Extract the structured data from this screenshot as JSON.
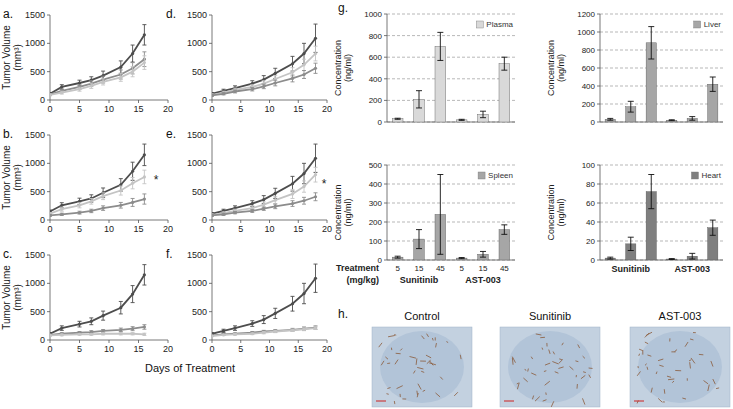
{
  "chart_data": [
    {
      "type": "line",
      "title": "a.",
      "ylabel": [
        "Tumor Volume",
        "(mm³)"
      ],
      "x": [
        0,
        2,
        5,
        7,
        9,
        12,
        14,
        16
      ],
      "xlim": [
        0,
        20
      ],
      "xticks": [
        0,
        5,
        10,
        15,
        20
      ],
      "ylim": [
        0,
        1500
      ],
      "yticks": [
        0,
        500,
        1000,
        1500
      ],
      "series": [
        {
          "color": "#4d4d4d",
          "values": [
            110,
            230,
            300,
            350,
            430,
            580,
            820,
            1150
          ],
          "errors": [
            20,
            40,
            50,
            60,
            80,
            110,
            150,
            180
          ]
        },
        {
          "color": "#8c8c8c",
          "values": [
            100,
            160,
            230,
            290,
            360,
            450,
            560,
            720
          ],
          "errors": [
            15,
            30,
            40,
            50,
            60,
            80,
            100,
            130
          ]
        },
        {
          "color": "#c4c4c4",
          "values": [
            90,
            130,
            190,
            250,
            320,
            400,
            500,
            660
          ],
          "errors": [
            15,
            25,
            35,
            45,
            55,
            70,
            90,
            120
          ]
        }
      ]
    },
    {
      "type": "line",
      "title": "b.",
      "ylabel": [
        "Tumor Volume",
        "(mm³)"
      ],
      "x": [
        0,
        2,
        5,
        7,
        9,
        12,
        14,
        16
      ],
      "xlim": [
        0,
        20
      ],
      "xticks": [
        0,
        5,
        10,
        15,
        20
      ],
      "ylim": [
        0,
        1500
      ],
      "yticks": [
        0,
        500,
        1000,
        1500
      ],
      "series": [
        {
          "color": "#4d4d4d",
          "values": [
            150,
            260,
            330,
            380,
            480,
            620,
            860,
            1150
          ],
          "errors": [
            25,
            45,
            55,
            65,
            85,
            110,
            160,
            190
          ]
        },
        {
          "color": "#c4c4c4",
          "values": [
            110,
            190,
            260,
            330,
            420,
            520,
            650,
            760
          ],
          "errors": [
            20,
            35,
            45,
            50,
            60,
            80,
            100,
            120
          ]
        },
        {
          "color": "#8c8c8c",
          "values": [
            80,
            100,
            130,
            160,
            210,
            260,
            310,
            370
          ],
          "errors": [
            15,
            20,
            25,
            30,
            40,
            50,
            70,
            90
          ]
        }
      ],
      "annotations": [
        {
          "text": "*",
          "x": 18,
          "y": 720
        }
      ]
    },
    {
      "type": "line",
      "title": "c.",
      "ylabel": [
        "Tumor Volume",
        "(mm³)"
      ],
      "x": [
        0,
        2,
        5,
        7,
        9,
        12,
        14,
        16
      ],
      "xlim": [
        0,
        20
      ],
      "xticks": [
        0,
        5,
        10,
        15,
        20
      ],
      "ylim": [
        0,
        1500
      ],
      "yticks": [
        0,
        500,
        1000,
        1500
      ],
      "series": [
        {
          "color": "#4d4d4d",
          "values": [
            110,
            210,
            280,
            330,
            430,
            570,
            810,
            1150
          ],
          "errors": [
            20,
            40,
            50,
            60,
            80,
            110,
            150,
            180
          ]
        },
        {
          "color": "#8c8c8c",
          "values": [
            90,
            110,
            130,
            140,
            160,
            180,
            200,
            230
          ],
          "errors": [
            15,
            20,
            20,
            25,
            25,
            30,
            35,
            40
          ]
        },
        {
          "color": "#c4c4c4",
          "values": [
            80,
            90,
            100,
            100,
            110,
            110,
            110,
            100
          ],
          "errors": [
            10,
            15,
            15,
            15,
            20,
            20,
            20,
            20
          ]
        }
      ]
    },
    {
      "type": "line",
      "title": "d.",
      "x": [
        0,
        2,
        4,
        7,
        9,
        11,
        14,
        16,
        18
      ],
      "xlim": [
        0,
        20
      ],
      "xticks": [
        0,
        5,
        10,
        15,
        20
      ],
      "ylim": [
        0,
        1500
      ],
      "yticks": [
        0,
        500,
        1000,
        1500
      ],
      "series": [
        {
          "color": "#4d4d4d",
          "values": [
            110,
            160,
            210,
            290,
            360,
            470,
            640,
            820,
            1090
          ],
          "errors": [
            20,
            30,
            40,
            50,
            70,
            90,
            130,
            180,
            250
          ]
        },
        {
          "color": "#c4c4c4",
          "values": [
            90,
            130,
            180,
            230,
            290,
            370,
            490,
            620,
            820
          ],
          "errors": [
            15,
            25,
            30,
            40,
            50,
            60,
            80,
            100,
            130
          ]
        },
        {
          "color": "#8c8c8c",
          "values": [
            80,
            110,
            150,
            190,
            240,
            300,
            380,
            450,
            560
          ],
          "errors": [
            15,
            20,
            25,
            30,
            40,
            50,
            60,
            70,
            90
          ]
        }
      ]
    },
    {
      "type": "line",
      "title": "e.",
      "x": [
        0,
        2,
        4,
        7,
        9,
        11,
        14,
        16,
        18
      ],
      "xlim": [
        0,
        20
      ],
      "xticks": [
        0,
        5,
        10,
        15,
        20
      ],
      "ylim": [
        0,
        1500
      ],
      "yticks": [
        0,
        500,
        1000,
        1500
      ],
      "series": [
        {
          "color": "#4d4d4d",
          "values": [
            110,
            160,
            210,
            290,
            360,
            470,
            640,
            820,
            1090
          ],
          "errors": [
            20,
            30,
            40,
            50,
            70,
            90,
            130,
            180,
            250
          ]
        },
        {
          "color": "#c4c4c4",
          "values": [
            90,
            120,
            160,
            210,
            270,
            350,
            460,
            590,
            800
          ],
          "errors": [
            15,
            25,
            30,
            40,
            50,
            60,
            80,
            100,
            130
          ]
        },
        {
          "color": "#8c8c8c",
          "values": [
            80,
            100,
            130,
            160,
            200,
            240,
            290,
            340,
            410
          ],
          "errors": [
            15,
            20,
            20,
            25,
            30,
            40,
            50,
            60,
            70
          ]
        }
      ],
      "annotations": [
        {
          "text": "*",
          "x": 19.5,
          "y": 650
        }
      ]
    },
    {
      "type": "line",
      "title": "f.",
      "x": [
        0,
        2,
        4,
        7,
        9,
        11,
        14,
        16,
        18
      ],
      "xlim": [
        0,
        20
      ],
      "xticks": [
        0,
        5,
        10,
        15,
        20
      ],
      "ylim": [
        0,
        1500
      ],
      "yticks": [
        0,
        500,
        1000,
        1500
      ],
      "series": [
        {
          "color": "#4d4d4d",
          "values": [
            110,
            160,
            210,
            290,
            360,
            470,
            640,
            820,
            1090
          ],
          "errors": [
            20,
            30,
            40,
            50,
            70,
            90,
            130,
            180,
            250
          ]
        },
        {
          "color": "#8c8c8c",
          "values": [
            80,
            100,
            110,
            130,
            150,
            160,
            180,
            200,
            220
          ],
          "errors": [
            10,
            15,
            15,
            20,
            20,
            25,
            25,
            30,
            30
          ]
        },
        {
          "color": "#c4c4c4",
          "values": [
            70,
            90,
            100,
            110,
            130,
            150,
            170,
            190,
            210
          ],
          "errors": [
            10,
            10,
            15,
            15,
            20,
            20,
            20,
            25,
            25
          ]
        }
      ]
    },
    {
      "type": "bar",
      "title": "g.",
      "ylabel": [
        "Concentration",
        "(ng/ml)"
      ],
      "categories": [
        null,
        null,
        null,
        null,
        null,
        null
      ],
      "ylim": [
        0,
        1000
      ],
      "yticks": [
        0,
        200,
        400,
        600,
        800,
        1000
      ],
      "grid": true,
      "legend": "top-right",
      "series": [
        {
          "name": "Plasma",
          "color": "#d9d9d9",
          "values": [
            30,
            210,
            700,
            20,
            70,
            540
          ],
          "errors": [
            5,
            80,
            130,
            5,
            30,
            60
          ]
        }
      ]
    },
    {
      "type": "bar",
      "ylabel": [
        "Concentration",
        "(ng/ml)"
      ],
      "categories": [
        null,
        null,
        null,
        null,
        null,
        null
      ],
      "ylim": [
        0,
        1200
      ],
      "yticks": [
        0,
        200,
        400,
        600,
        800,
        1000,
        1200
      ],
      "grid": true,
      "legend": "top-right",
      "series": [
        {
          "name": "Liver",
          "color": "#a6a6a6",
          "values": [
            30,
            170,
            880,
            20,
            40,
            420
          ],
          "errors": [
            10,
            60,
            180,
            5,
            20,
            80
          ]
        }
      ]
    },
    {
      "type": "bar",
      "ylabel": [
        "Concentration",
        "(ng/ml)"
      ],
      "xlabel": [
        "Treatment",
        "(mg/kg)"
      ],
      "categories": [
        "5",
        "15",
        "45",
        "5",
        "15",
        "45"
      ],
      "groups": [
        "Sunitinib",
        "AST-003"
      ],
      "ylim": [
        0,
        500
      ],
      "yticks": [
        0,
        100,
        200,
        300,
        400,
        500
      ],
      "grid": true,
      "legend": "top-right",
      "series": [
        {
          "name": "Spleen",
          "color": "#a6a6a6",
          "values": [
            15,
            110,
            240,
            10,
            30,
            160
          ],
          "errors": [
            5,
            50,
            210,
            3,
            15,
            25
          ]
        }
      ]
    },
    {
      "type": "bar",
      "ylabel": [
        "Concentration",
        "(ng/ml)"
      ],
      "categories": [
        null,
        null,
        null,
        null,
        null,
        null
      ],
      "groups": [
        "Sunitinib",
        "AST-003"
      ],
      "ylim": [
        0,
        100
      ],
      "yticks": [
        0,
        20,
        40,
        60,
        80,
        100
      ],
      "grid": true,
      "legend": "top-right",
      "series": [
        {
          "name": "Heart",
          "color": "#7f7f7f",
          "values": [
            2,
            17,
            72,
            1,
            4,
            34
          ],
          "errors": [
            1,
            7,
            18,
            0.5,
            3,
            8
          ]
        }
      ]
    }
  ],
  "figure": {
    "xlabel": "Days of Treatment",
    "images": {
      "label": "h.",
      "captions": [
        "Control",
        "Sunitinib",
        "AST-003"
      ]
    }
  }
}
